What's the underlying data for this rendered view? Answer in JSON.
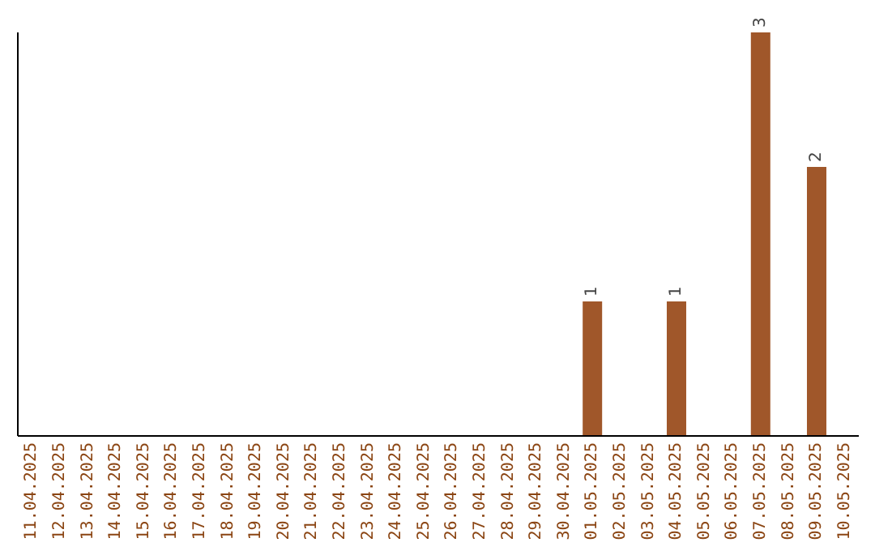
{
  "chart_data": {
    "type": "bar",
    "categories": [
      "11.04.2025",
      "12.04.2025",
      "13.04.2025",
      "14.04.2025",
      "15.04.2025",
      "16.04.2025",
      "17.04.2025",
      "18.04.2025",
      "19.04.2025",
      "20.04.2025",
      "21.04.2025",
      "22.04.2025",
      "23.04.2025",
      "24.04.2025",
      "25.04.2025",
      "26.04.2025",
      "27.04.2025",
      "28.04.2025",
      "29.04.2025",
      "30.04.2025",
      "01.05.2025",
      "02.05.2025",
      "03.05.2025",
      "04.05.2025",
      "05.05.2025",
      "06.05.2025",
      "07.05.2025",
      "08.05.2025",
      "09.05.2025",
      "10.05.2025"
    ],
    "values": [
      null,
      null,
      null,
      null,
      null,
      null,
      null,
      null,
      null,
      null,
      null,
      null,
      null,
      null,
      null,
      null,
      null,
      null,
      null,
      null,
      1,
      null,
      null,
      1,
      null,
      null,
      3,
      null,
      2,
      null
    ],
    "data_labels": true,
    "color": "#a0572a",
    "grid": false,
    "legend": false
  }
}
